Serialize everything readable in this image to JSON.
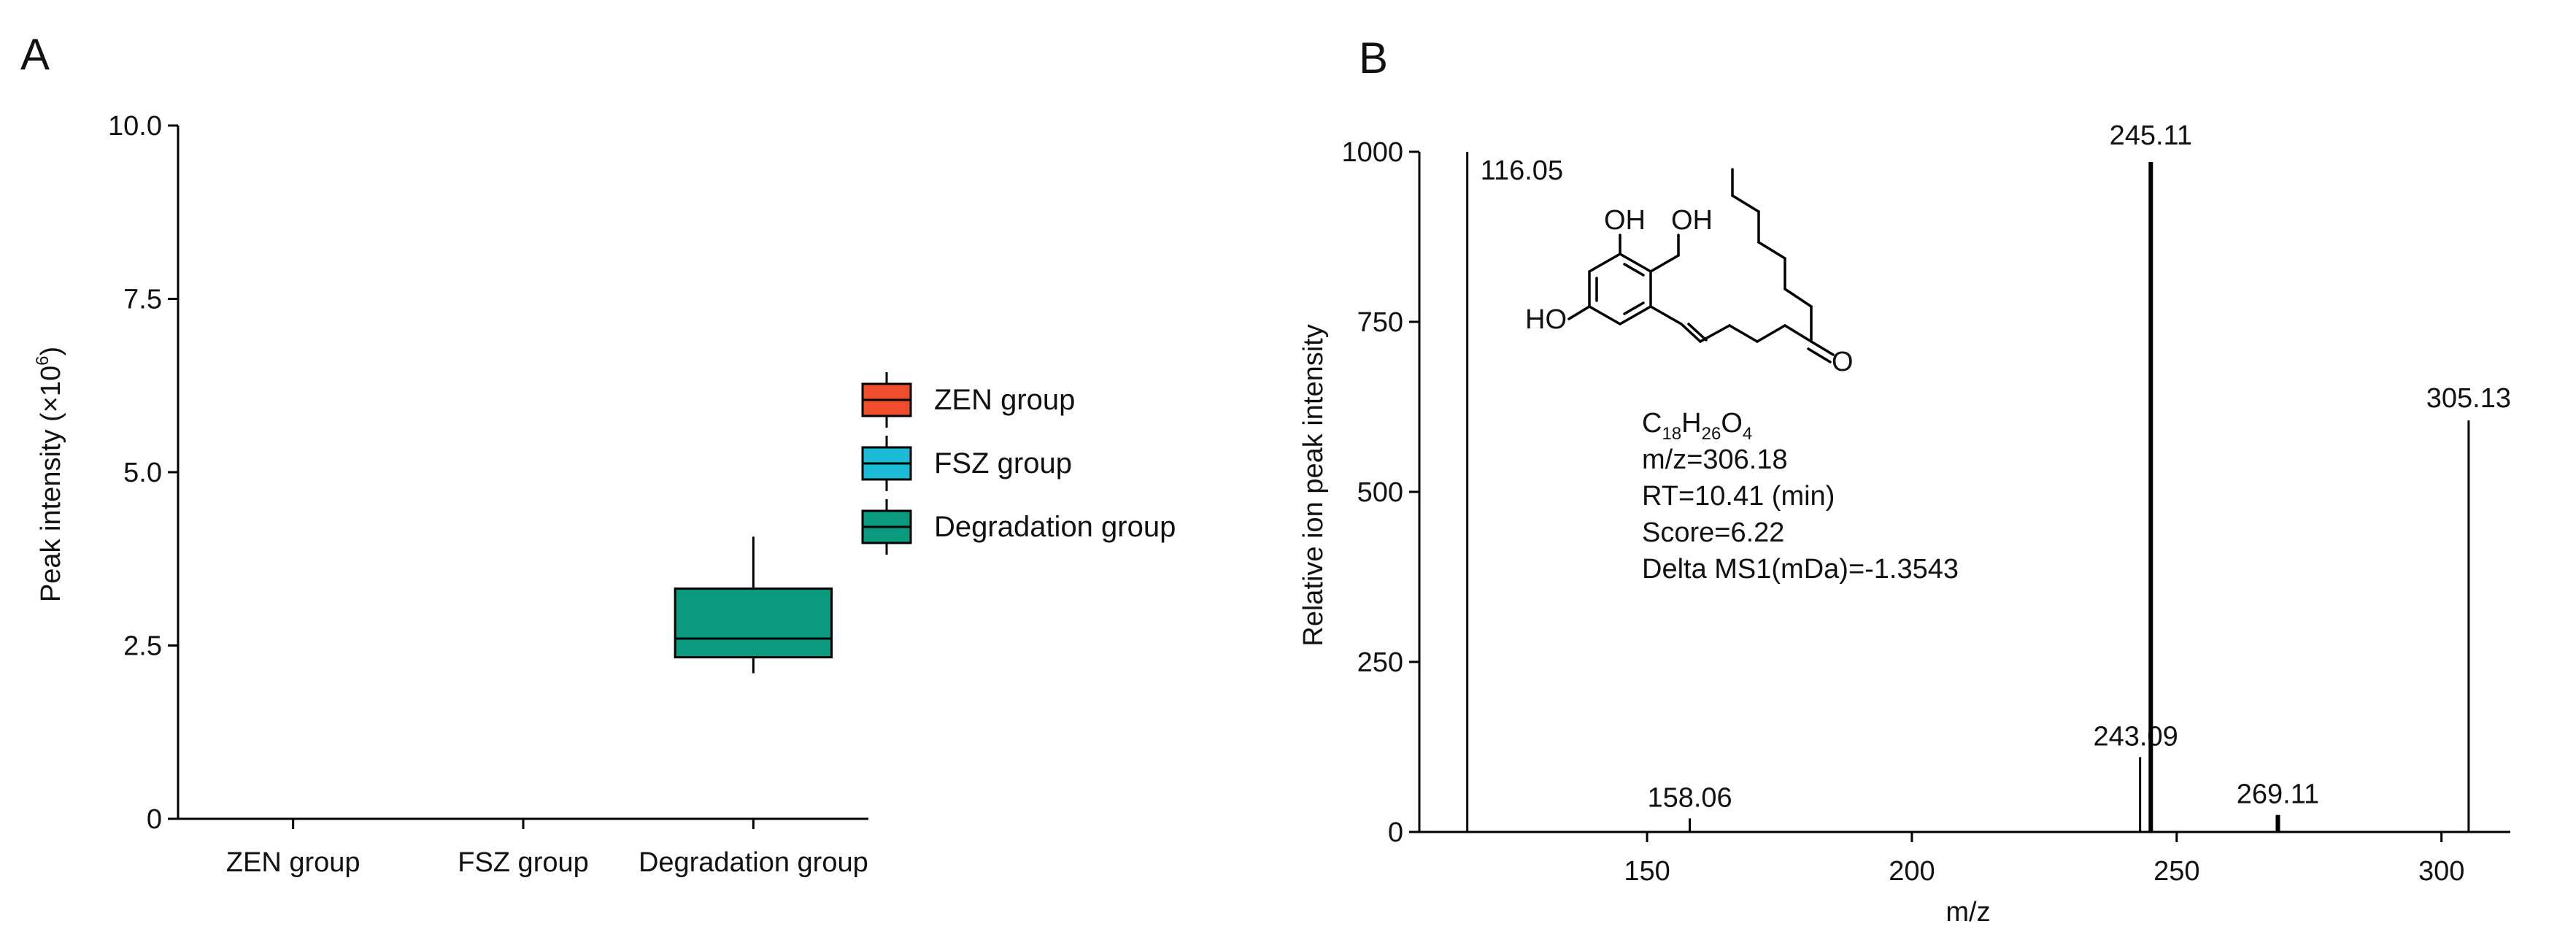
{
  "panels": {
    "a": "A",
    "b": "B"
  },
  "colors": {
    "zen": "#f04d2c",
    "fsz": "#1bbad6",
    "deg": "#0a9a80",
    "axis": "#000000"
  },
  "chart_data": [
    {
      "type": "box",
      "ylabel": "Peak intensity (×10",
      "ylabel_sup": "6",
      "ylabel_end": ")",
      "ylim": [
        0,
        10
      ],
      "yticks": [
        0,
        2.5,
        5,
        7.5,
        10
      ],
      "ytick_labels": [
        "0",
        "2.5",
        "5.0",
        "7.5",
        "10.0"
      ],
      "categories": [
        "ZEN group",
        "FSZ group",
        "Degradation group"
      ],
      "boxes": [
        {
          "name": "ZEN group",
          "color": "#f04d2c",
          "min": null,
          "q1": null,
          "median": null,
          "q3": null,
          "max": null
        },
        {
          "name": "FSZ group",
          "color": "#1bbad6",
          "min": null,
          "q1": null,
          "median": null,
          "q3": null,
          "max": null
        },
        {
          "name": "Degradation group",
          "color": "#0a9a80",
          "min": 2.1,
          "q1": 2.33,
          "median": 2.6,
          "q3": 3.32,
          "max": 4.07
        }
      ],
      "legend": [
        "ZEN group",
        "FSZ group",
        "Degradation group"
      ],
      "legend_position": "right",
      "grid": false
    },
    {
      "type": "stem",
      "xlabel": "m/z",
      "ylabel": "Relative ion peak intensity",
      "xlim": [
        107,
        313
      ],
      "ylim": [
        0,
        1000
      ],
      "xticks": [
        150,
        200,
        250,
        300
      ],
      "yticks": [
        0,
        250,
        500,
        750,
        1000
      ],
      "peaks": [
        {
          "x": 116.05,
          "y": 1000,
          "label": "116.05"
        },
        {
          "x": 158.06,
          "y": 20,
          "label": "158.06"
        },
        {
          "x": 243.09,
          "y": 110,
          "label": "243.09"
        },
        {
          "x": 245.11,
          "y": 985,
          "label": "245.11"
        },
        {
          "x": 269.11,
          "y": 25,
          "label": "269.11"
        },
        {
          "x": 305.13,
          "y": 605,
          "label": "305.13"
        }
      ],
      "grid": false
    }
  ],
  "compound": {
    "formula_parts": [
      "C",
      "18",
      "H",
      "26",
      "O",
      "4"
    ],
    "mz": "m/z=306.18",
    "rt": "RT=10.41 (min)",
    "score": "Score=6.22",
    "delta": "Delta MS1(mDa)=-1.3543",
    "atoms": {
      "oh1": "OH",
      "oh2": "OH",
      "ho": "HO",
      "o": "O"
    }
  }
}
